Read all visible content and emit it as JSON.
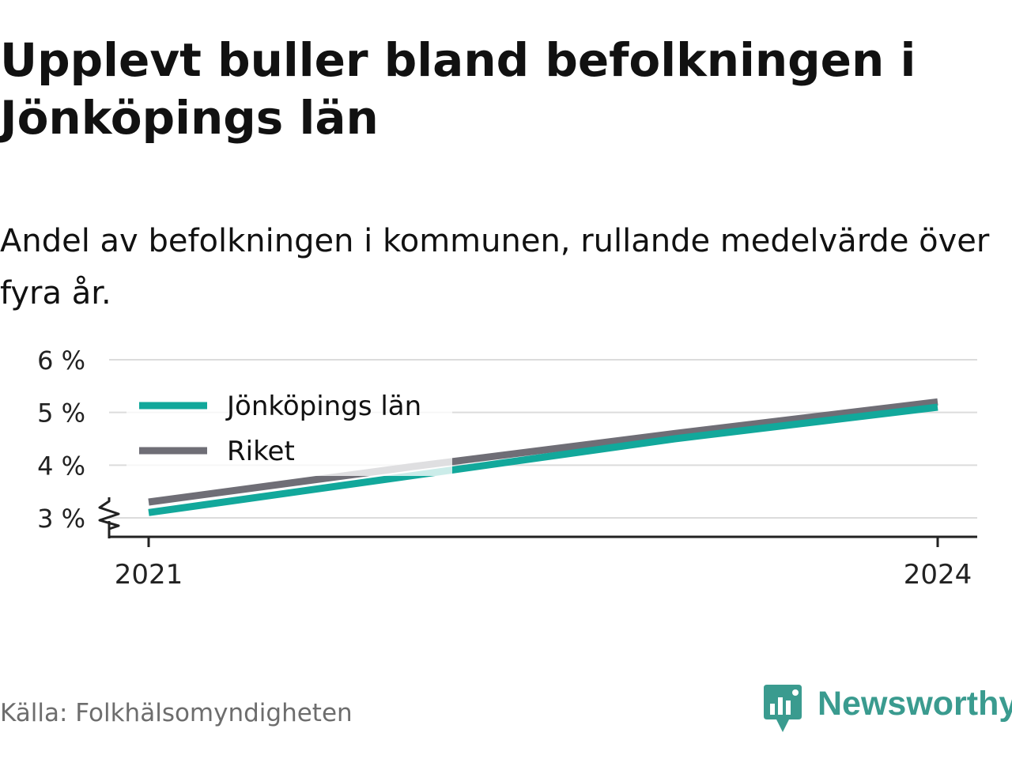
{
  "header": {
    "title": "Upplevt buller bland befolkningen i Jönköpings län",
    "subtitle": "Andel av befolkningen i kommunen, rullande medelvärde över fyra år."
  },
  "footer": {
    "source": "Källa: Folkhälsomyndigheten",
    "brand": "Newsworthy",
    "brand_color": "#3a9b8f"
  },
  "chart_data": {
    "type": "line",
    "x": [
      2021,
      2022,
      2023,
      2024
    ],
    "x_tick_labels": [
      "2021",
      "2024"
    ],
    "ylim": [
      3,
      6
    ],
    "y_ticks": [
      3,
      4,
      5,
      6
    ],
    "y_tick_labels": [
      "3 %",
      "4 %",
      "5 %",
      "6 %"
    ],
    "y_axis_break": true,
    "grid": true,
    "legend_position": "top-left",
    "series": [
      {
        "name": "Jönköpings län",
        "color": "#12a89b",
        "values": [
          3.1,
          3.8,
          4.5,
          5.1
        ]
      },
      {
        "name": "Riket",
        "color": "#6f6e76",
        "values": [
          3.3,
          3.97,
          4.6,
          5.2
        ]
      }
    ]
  }
}
